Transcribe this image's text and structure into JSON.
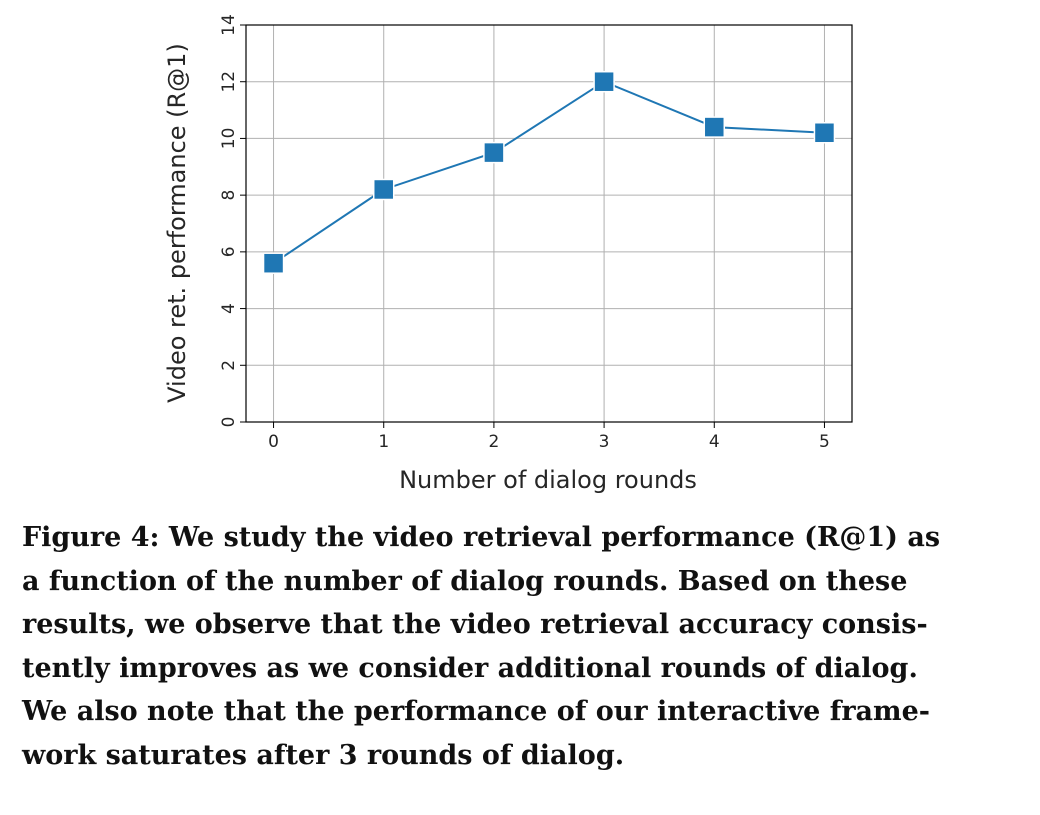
{
  "chart_data": {
    "type": "line",
    "x": [
      0,
      1,
      2,
      3,
      4,
      5
    ],
    "series": [
      {
        "values": [
          5.6,
          8.2,
          9.5,
          12.0,
          10.4,
          10.2
        ],
        "color": "#1f77b4",
        "marker": "square"
      }
    ],
    "xlabel": "Number of dialog rounds",
    "ylabel": "Video ret. performance (R@1)",
    "xticks": [
      "0",
      "1",
      "2",
      "3",
      "4",
      "5"
    ],
    "yticks": [
      "0",
      "2",
      "4",
      "6",
      "8",
      "10",
      "12",
      "14"
    ],
    "xlim": [
      -0.25,
      5.25
    ],
    "ylim": [
      0,
      14
    ],
    "grid": true
  },
  "caption": "Figure 4: We study the video retrieval performance (R@1) as\na function of the number of dialog rounds. Based on these\nresults, we observe that the video retrieval accuracy consis-\ntently improves as we consider additional rounds of dialog.\nWe also note that the performance of our interactive frame-\nwork saturates after 3 rounds of dialog."
}
